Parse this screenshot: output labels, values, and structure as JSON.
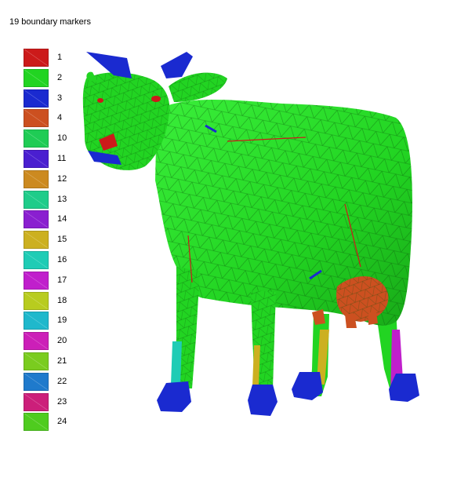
{
  "title": "19 boundary markers",
  "markers": [
    {
      "label": "1",
      "color": "#cc1a1a"
    },
    {
      "label": "2",
      "color": "#22d422"
    },
    {
      "label": "3",
      "color": "#1a2ad0"
    },
    {
      "label": "4",
      "color": "#cc5020"
    },
    {
      "label": "10",
      "color": "#1fcc55"
    },
    {
      "label": "11",
      "color": "#4a1fd0"
    },
    {
      "label": "12",
      "color": "#cc8a20"
    },
    {
      "label": "13",
      "color": "#1fcc8a"
    },
    {
      "label": "14",
      "color": "#8a1fd0"
    },
    {
      "label": "15",
      "color": "#ccb020"
    },
    {
      "label": "16",
      "color": "#1fccb5"
    },
    {
      "label": "17",
      "color": "#c01fcc"
    },
    {
      "label": "18",
      "color": "#b8cc1f"
    },
    {
      "label": "19",
      "color": "#1fb8cc"
    },
    {
      "label": "20",
      "color": "#cc1fb8"
    },
    {
      "label": "21",
      "color": "#7acc1f"
    },
    {
      "label": "22",
      "color": "#1f7acc"
    },
    {
      "label": "23",
      "color": "#cc1f7a"
    },
    {
      "label": "24",
      "color": "#4fcc1f"
    }
  ]
}
